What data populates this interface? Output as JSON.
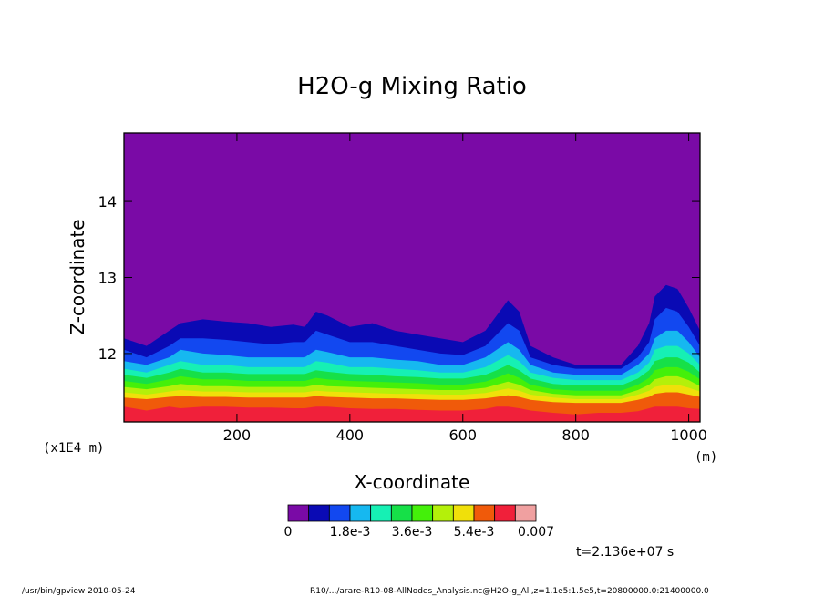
{
  "chart_data": {
    "type": "filled-contour",
    "title": "H2O-g Mixing Ratio",
    "xlabel": "X-coordinate",
    "xunits": "(m)",
    "ylabel": "Z-coordinate",
    "yunits": "(x1E4 m)",
    "xlim": [
      0,
      1020
    ],
    "ylim": [
      11.1,
      14.9
    ],
    "xticks": [
      200,
      400,
      600,
      800,
      1000
    ],
    "xtick_labels": [
      "200",
      "400",
      "600",
      "800",
      "1000"
    ],
    "yticks": [
      12,
      13,
      14
    ],
    "ytick_labels": [
      "12",
      "13",
      "14"
    ],
    "colorbar": {
      "colors": [
        "#7a0aa6",
        "#0a0ab4",
        "#1248f0",
        "#16b8f0",
        "#16f0b4",
        "#16e048",
        "#44f00a",
        "#b4f00a",
        "#f0e00a",
        "#f05a0a",
        "#f0203a",
        "#f0a0a0"
      ],
      "labels": [
        "0",
        "1.8e-3",
        "3.6e-3",
        "5.4e-3",
        "0.007"
      ],
      "label_positions": [
        0,
        3,
        6,
        9,
        12
      ]
    },
    "contour_top_boundaries": {
      "x": [
        0,
        40,
        80,
        100,
        140,
        180,
        220,
        260,
        300,
        320,
        340,
        360,
        400,
        440,
        480,
        520,
        560,
        600,
        640,
        660,
        680,
        700,
        720,
        760,
        800,
        840,
        880,
        910,
        930,
        940,
        960,
        980,
        1000,
        1020
      ],
      "levels": [
        [
          12.2,
          12.1,
          12.3,
          12.4,
          12.45,
          12.42,
          12.4,
          12.35,
          12.38,
          12.35,
          12.55,
          12.5,
          12.35,
          12.4,
          12.3,
          12.25,
          12.2,
          12.15,
          12.3,
          12.5,
          12.7,
          12.55,
          12.1,
          11.95,
          11.85,
          11.85,
          11.85,
          12.1,
          12.4,
          12.75,
          12.9,
          12.85,
          12.6,
          12.3
        ],
        [
          12.05,
          11.95,
          12.1,
          12.2,
          12.2,
          12.18,
          12.15,
          12.12,
          12.15,
          12.15,
          12.3,
          12.25,
          12.15,
          12.15,
          12.1,
          12.05,
          12.0,
          11.98,
          12.1,
          12.25,
          12.4,
          12.3,
          11.95,
          11.85,
          11.8,
          11.8,
          11.8,
          11.95,
          12.15,
          12.45,
          12.6,
          12.55,
          12.35,
          12.1
        ],
        [
          11.9,
          11.85,
          11.95,
          12.05,
          12.0,
          11.98,
          11.95,
          11.95,
          11.95,
          11.95,
          12.05,
          12.02,
          11.95,
          11.95,
          11.92,
          11.9,
          11.85,
          11.85,
          11.95,
          12.05,
          12.15,
          12.05,
          11.85,
          11.75,
          11.72,
          11.72,
          11.72,
          11.85,
          12.0,
          12.2,
          12.3,
          12.3,
          12.15,
          11.95
        ],
        [
          11.8,
          11.75,
          11.85,
          11.9,
          11.85,
          11.85,
          11.82,
          11.82,
          11.82,
          11.82,
          11.9,
          11.88,
          11.82,
          11.82,
          11.8,
          11.78,
          11.75,
          11.75,
          11.82,
          11.9,
          11.98,
          11.9,
          11.75,
          11.68,
          11.65,
          11.65,
          11.65,
          11.75,
          11.88,
          12.05,
          12.1,
          12.1,
          12.0,
          11.85
        ],
        [
          11.72,
          11.68,
          11.75,
          11.8,
          11.75,
          11.75,
          11.73,
          11.73,
          11.73,
          11.73,
          11.78,
          11.76,
          11.73,
          11.72,
          11.7,
          11.69,
          11.67,
          11.67,
          11.72,
          11.78,
          11.85,
          11.78,
          11.67,
          11.6,
          11.58,
          11.58,
          11.58,
          11.67,
          11.78,
          11.9,
          11.95,
          11.95,
          11.88,
          11.75
        ],
        [
          11.64,
          11.6,
          11.66,
          11.7,
          11.66,
          11.66,
          11.64,
          11.64,
          11.64,
          11.64,
          11.68,
          11.66,
          11.64,
          11.63,
          11.62,
          11.61,
          11.59,
          11.59,
          11.63,
          11.68,
          11.74,
          11.68,
          11.59,
          11.53,
          11.51,
          11.51,
          11.51,
          11.59,
          11.68,
          11.78,
          11.82,
          11.82,
          11.76,
          11.66
        ],
        [
          11.56,
          11.53,
          11.57,
          11.6,
          11.57,
          11.57,
          11.56,
          11.56,
          11.56,
          11.56,
          11.59,
          11.57,
          11.56,
          11.55,
          11.54,
          11.53,
          11.52,
          11.52,
          11.55,
          11.59,
          11.63,
          11.59,
          11.52,
          11.47,
          11.45,
          11.45,
          11.45,
          11.52,
          11.59,
          11.66,
          11.7,
          11.7,
          11.65,
          11.57
        ],
        [
          11.49,
          11.46,
          11.5,
          11.52,
          11.5,
          11.5,
          11.49,
          11.49,
          11.49,
          11.49,
          11.51,
          11.5,
          11.49,
          11.48,
          11.47,
          11.47,
          11.46,
          11.46,
          11.48,
          11.51,
          11.54,
          11.51,
          11.46,
          11.42,
          11.4,
          11.4,
          11.4,
          11.46,
          11.51,
          11.56,
          11.59,
          11.59,
          11.55,
          11.5
        ],
        [
          11.42,
          11.4,
          11.43,
          11.44,
          11.43,
          11.43,
          11.42,
          11.42,
          11.42,
          11.42,
          11.44,
          11.43,
          11.42,
          11.41,
          11.41,
          11.4,
          11.39,
          11.39,
          11.41,
          11.43,
          11.45,
          11.43,
          11.39,
          11.36,
          11.35,
          11.35,
          11.35,
          11.39,
          11.43,
          11.47,
          11.49,
          11.49,
          11.46,
          11.43
        ],
        [
          11.3,
          11.25,
          11.3,
          11.28,
          11.3,
          11.3,
          11.29,
          11.29,
          11.28,
          11.28,
          11.3,
          11.3,
          11.28,
          11.27,
          11.27,
          11.26,
          11.25,
          11.25,
          11.27,
          11.3,
          11.3,
          11.28,
          11.25,
          11.22,
          11.2,
          11.22,
          11.22,
          11.24,
          11.28,
          11.3,
          11.3,
          11.3,
          11.28,
          11.27
        ]
      ]
    }
  },
  "labels": {
    "time": "t=2.136e+07 s",
    "footer_left": "/usr/bin/gpview  2010-05-24",
    "footer_right": "R10/.../arare-R10-08-AllNodes_Analysis.nc@H2O-g_All,z=1.1e5:1.5e5,t=20800000.0:21400000.0"
  }
}
